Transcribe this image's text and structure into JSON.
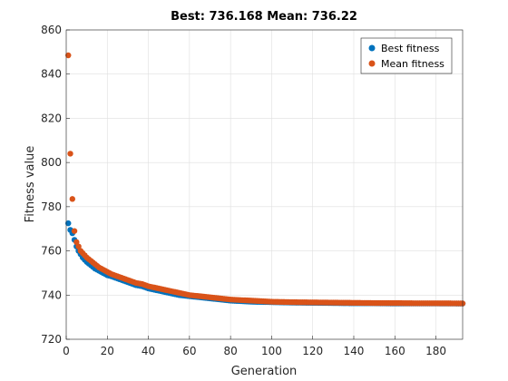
{
  "chart_data": {
    "type": "scatter",
    "title": "Best: 736.168 Mean: 736.22",
    "xlabel": "Generation",
    "ylabel": "Fitness value",
    "xlim": [
      0,
      193
    ],
    "ylim": [
      720,
      860
    ],
    "xticks": [
      0,
      20,
      40,
      60,
      80,
      100,
      120,
      140,
      160,
      180
    ],
    "yticks": [
      720,
      740,
      760,
      780,
      800,
      820,
      840,
      860
    ],
    "grid": true,
    "legend_position": "top-right",
    "series": [
      {
        "name": "Best fitness",
        "color": "#0072BD",
        "x": [
          1,
          2,
          3,
          4,
          5,
          6,
          7,
          8,
          9,
          10,
          12,
          14,
          16,
          18,
          20,
          22,
          25,
          28,
          31,
          34,
          37,
          40,
          45,
          50,
          55,
          60,
          65,
          70,
          75,
          80,
          90,
          100,
          110,
          120,
          130,
          140,
          150,
          160,
          170,
          180,
          190,
          193
        ],
        "y": [
          772.5,
          769.5,
          768,
          765,
          762,
          760,
          758.5,
          757,
          756,
          755,
          753.5,
          752,
          751,
          750,
          749,
          748.5,
          747.5,
          746.5,
          745.5,
          744.5,
          744,
          743,
          742,
          741,
          740,
          739.5,
          739,
          738.5,
          738,
          737.5,
          737,
          736.8,
          736.6,
          736.5,
          736.4,
          736.3,
          736.3,
          736.2,
          736.2,
          736.2,
          736.17,
          736.168
        ]
      },
      {
        "name": "Mean fitness",
        "color": "#D95319",
        "x": [
          1,
          2,
          3,
          4,
          5,
          6,
          7,
          8,
          9,
          10,
          12,
          14,
          16,
          18,
          20,
          22,
          25,
          28,
          31,
          34,
          37,
          40,
          45,
          50,
          55,
          60,
          65,
          70,
          75,
          80,
          90,
          100,
          110,
          120,
          130,
          140,
          150,
          160,
          170,
          180,
          190,
          193
        ],
        "y": [
          848.5,
          804,
          783.5,
          769,
          764,
          762,
          760,
          759,
          758,
          757,
          755.5,
          754,
          752.5,
          751.5,
          750.5,
          749.5,
          748.5,
          747.5,
          746.5,
          745.5,
          745,
          744,
          743,
          742,
          741,
          740,
          739.5,
          739,
          738.5,
          738,
          737.5,
          737,
          736.8,
          736.7,
          736.6,
          736.5,
          736.4,
          736.4,
          736.3,
          736.3,
          736.25,
          736.22
        ]
      }
    ]
  }
}
